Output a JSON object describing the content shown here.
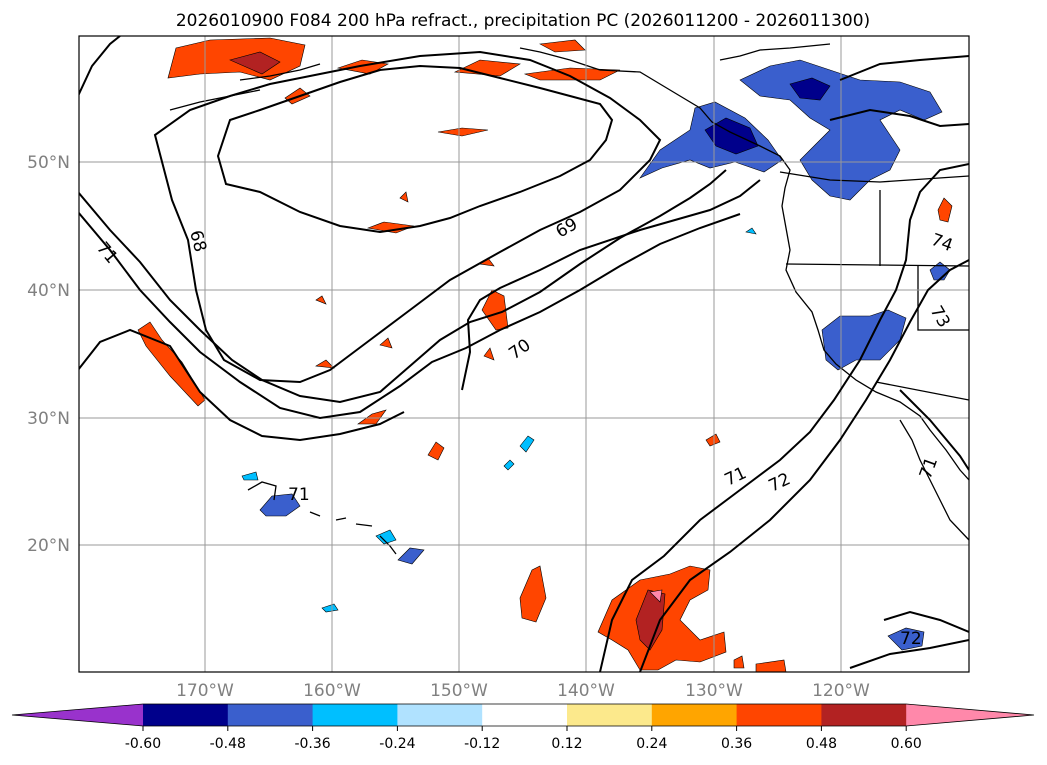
{
  "title": "2026010900 F084 200 hPa refract., precipitation PC (2026011200 - 2026011300)",
  "lat_labels": [
    "50°N",
    "40°N",
    "30°N",
    "20°N"
  ],
  "lon_labels": [
    "170°W",
    "160°W",
    "150°W",
    "140°W",
    "130°W",
    "120°W"
  ],
  "contour_labels": [
    "68",
    "69",
    "70",
    "71",
    "71",
    "72",
    "73",
    "74",
    "71",
    "71",
    "72"
  ],
  "colorbar": {
    "tick_labels": [
      "-0.60",
      "-0.48",
      "-0.36",
      "-0.24",
      "-0.12",
      "0.12",
      "0.24",
      "0.36",
      "0.48",
      "0.60"
    ],
    "colors": [
      "#9932cc",
      "#00008b",
      "#3a5fcd",
      "#00bfff",
      "#b0e2ff",
      "#ffffff",
      "#fce98c",
      "#ffa500",
      "#ff4500",
      "#b22222",
      "#ff88aa"
    ]
  }
}
